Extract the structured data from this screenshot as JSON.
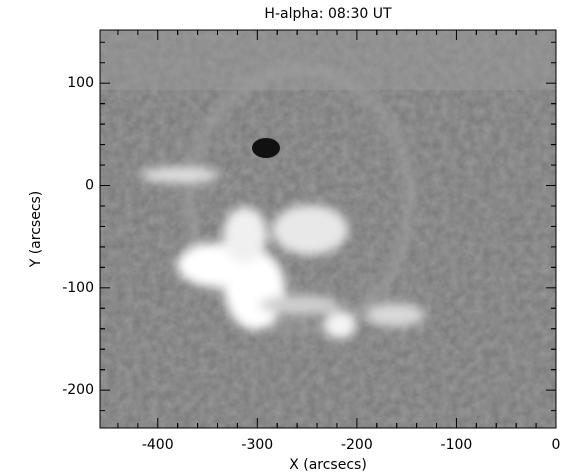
{
  "chart_data": {
    "type": "image",
    "title": "H-alpha: 08:30 UT",
    "x_label": "X (arcsecs)",
    "y_label": "Y (arcsecs)",
    "xlim": [
      -458,
      0
    ],
    "xticks": [
      -400,
      -300,
      -200,
      -100,
      0
    ],
    "ylim": [
      -237,
      152
    ],
    "yticks": [
      -200,
      -100,
      0,
      100
    ],
    "colormap": "gray"
  }
}
